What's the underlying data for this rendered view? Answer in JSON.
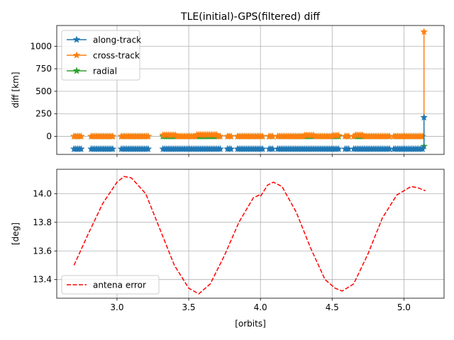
{
  "chart_data": [
    {
      "type": "line",
      "title": "TLE(initial)-GPS(filtered) diff",
      "xlabel": "",
      "ylabel": "diff [km]",
      "xlim": [
        2.58,
        5.28
      ],
      "ylim": [
        -200,
        1230
      ],
      "xticks": [
        3.0,
        3.5,
        4.0,
        4.5,
        5.0
      ],
      "xtick_labels_visible": false,
      "yticks": [
        0,
        250,
        500,
        750,
        1000
      ],
      "ytick_labels": [
        "0",
        "250",
        "500",
        "750",
        "1000"
      ],
      "grid": true,
      "legend_position": "top-left",
      "marker": "star",
      "segments": [
        [
          2.7,
          2.76
        ],
        [
          2.82,
          2.98
        ],
        [
          3.03,
          3.22
        ],
        [
          3.32,
          3.72
        ],
        [
          3.77,
          3.8
        ],
        [
          3.84,
          4.02
        ],
        [
          4.06,
          4.09
        ],
        [
          4.12,
          4.55
        ],
        [
          4.59,
          4.62
        ],
        [
          4.65,
          4.9
        ],
        [
          4.93,
          5.14
        ]
      ],
      "series": [
        {
          "name": "along-track",
          "color": "#1f77b4",
          "baseline": -140,
          "x": [
            5.14,
            5.14
          ],
          "y": [
            -140,
            210
          ]
        },
        {
          "name": "cross-track",
          "color": "#ff7f0e",
          "baseline": 0,
          "bumps": [
            [
              3.3,
              3.42,
              15
            ],
            [
              3.55,
              3.7,
              18
            ],
            [
              4.3,
              4.38,
              12
            ],
            [
              4.5,
              4.56,
              10
            ],
            [
              4.66,
              4.72,
              14
            ]
          ],
          "x": [
            5.14,
            5.14
          ],
          "y": [
            0,
            1160
          ]
        },
        {
          "name": "radial",
          "color": "#2ca02c",
          "baseline": 0,
          "x": [
            5.14,
            5.14
          ],
          "y": [
            0,
            -110
          ]
        }
      ]
    },
    {
      "type": "line",
      "title": "",
      "xlabel": "[orbits]",
      "ylabel": "[deg]",
      "xlim": [
        2.58,
        5.28
      ],
      "ylim": [
        13.27,
        14.17
      ],
      "xticks": [
        3.0,
        3.5,
        4.0,
        4.5,
        5.0
      ],
      "xtick_labels": [
        "3.0",
        "3.5",
        "4.0",
        "4.5",
        "5.0"
      ],
      "yticks": [
        13.4,
        13.6,
        13.8,
        14.0
      ],
      "ytick_labels": [
        "13.4",
        "13.6",
        "13.8",
        "14.0"
      ],
      "grid": true,
      "legend_position": "lower-left",
      "series": [
        {
          "name": "antena error",
          "color": "#ff0000",
          "style": "dashed",
          "x": [
            2.7,
            2.8,
            2.9,
            3.0,
            3.05,
            3.1,
            3.2,
            3.3,
            3.4,
            3.5,
            3.57,
            3.65,
            3.75,
            3.85,
            3.95,
            3.99,
            4.0,
            4.05,
            4.09,
            4.15,
            4.25,
            4.35,
            4.45,
            4.52,
            4.57,
            4.65,
            4.75,
            4.85,
            4.95,
            5.05,
            5.1,
            5.15
          ],
          "y": [
            13.5,
            13.72,
            13.93,
            14.08,
            14.12,
            14.11,
            14.0,
            13.75,
            13.5,
            13.34,
            13.3,
            13.37,
            13.57,
            13.8,
            13.97,
            13.99,
            13.98,
            14.06,
            14.08,
            14.05,
            13.87,
            13.62,
            13.4,
            13.34,
            13.32,
            13.37,
            13.58,
            13.83,
            13.99,
            14.05,
            14.04,
            14.02
          ]
        }
      ]
    }
  ]
}
